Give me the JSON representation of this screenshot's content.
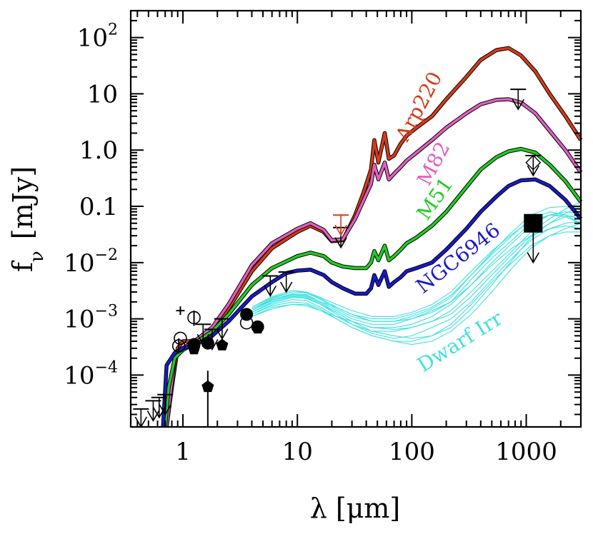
{
  "chart_data": {
    "type": "line",
    "xlabel": "λ [μm]",
    "ylabel": "f_ν [mJy]",
    "xscale": "log",
    "yscale": "log",
    "xlim": [
      0.35,
      3000
    ],
    "ylim": [
      1.2e-05,
      300
    ],
    "grid": false,
    "x_ticks": [
      {
        "value": 1,
        "label": "1"
      },
      {
        "value": 10,
        "label": "10"
      },
      {
        "value": 100,
        "label": "100"
      },
      {
        "value": 1000,
        "label": "1000"
      }
    ],
    "y_ticks": [
      {
        "value": 0.0001,
        "base": "10",
        "exp": "−4"
      },
      {
        "value": 0.001,
        "base": "10",
        "exp": "−3"
      },
      {
        "value": 0.01,
        "base": "10",
        "exp": "−2"
      },
      {
        "value": 0.1,
        "label": "0.1"
      },
      {
        "value": 1,
        "label": "1.0"
      },
      {
        "value": 10,
        "label": "10"
      },
      {
        "value": 100,
        "base": "10",
        "exp": "2"
      }
    ],
    "series": [
      {
        "name": "Arp220",
        "color": "#d63a1a",
        "points": [
          [
            0.72,
            1.2e-05
          ],
          [
            0.8,
            6e-05
          ],
          [
            0.9,
            0.0003
          ],
          [
            1.0,
            0.0004
          ],
          [
            1.3,
            0.0004
          ],
          [
            1.8,
            0.00065
          ],
          [
            2.5,
            0.0015
          ],
          [
            4,
            0.007
          ],
          [
            6,
            0.018
          ],
          [
            10,
            0.035
          ],
          [
            13,
            0.045
          ],
          [
            17,
            0.035
          ],
          [
            20,
            0.024
          ],
          [
            25,
            0.025
          ],
          [
            32,
            0.07
          ],
          [
            38,
            0.18
          ],
          [
            44,
            0.45
          ],
          [
            47,
            1.5
          ],
          [
            51,
            0.6
          ],
          [
            58,
            2
          ],
          [
            63,
            0.7
          ],
          [
            70,
            0.8
          ],
          [
            80,
            1.3
          ],
          [
            90,
            1.8
          ],
          [
            110,
            2.5
          ],
          [
            150,
            4
          ],
          [
            200,
            8
          ],
          [
            300,
            20
          ],
          [
            400,
            40
          ],
          [
            550,
            60
          ],
          [
            700,
            65
          ],
          [
            900,
            48
          ],
          [
            1200,
            25
          ],
          [
            1600,
            10
          ],
          [
            2200,
            4
          ],
          [
            3000,
            1.5
          ]
        ]
      },
      {
        "name": "M82",
        "color": "#e060c0",
        "points": [
          [
            0.72,
            1.2e-05
          ],
          [
            0.78,
            5e-05
          ],
          [
            0.85,
            0.0002
          ],
          [
            1.0,
            0.0003
          ],
          [
            1.3,
            0.00042
          ],
          [
            1.8,
            0.0007
          ],
          [
            2.5,
            0.0018
          ],
          [
            4,
            0.009
          ],
          [
            6,
            0.022
          ],
          [
            10,
            0.04
          ],
          [
            13,
            0.05
          ],
          [
            17,
            0.038
          ],
          [
            20,
            0.025
          ],
          [
            25,
            0.026
          ],
          [
            32,
            0.06
          ],
          [
            38,
            0.13
          ],
          [
            44,
            0.25
          ],
          [
            47,
            0.55
          ],
          [
            51,
            0.3
          ],
          [
            58,
            0.6
          ],
          [
            63,
            0.3
          ],
          [
            70,
            0.38
          ],
          [
            80,
            0.5
          ],
          [
            90,
            0.65
          ],
          [
            110,
            0.9
          ],
          [
            150,
            1.5
          ],
          [
            200,
            2.5
          ],
          [
            300,
            4.5
          ],
          [
            400,
            6.5
          ],
          [
            550,
            7.8
          ],
          [
            700,
            8
          ],
          [
            900,
            7
          ],
          [
            1200,
            4.5
          ],
          [
            1600,
            2.2
          ],
          [
            2200,
            1
          ],
          [
            3000,
            0.4
          ]
        ]
      },
      {
        "name": "M51",
        "color": "#22cc22",
        "points": [
          [
            0.7,
            1.2e-05
          ],
          [
            0.75,
            6e-05
          ],
          [
            0.85,
            0.0002
          ],
          [
            1.0,
            0.00028
          ],
          [
            1.3,
            0.00038
          ],
          [
            1.8,
            0.0006
          ],
          [
            2.5,
            0.0012
          ],
          [
            4,
            0.004
          ],
          [
            6,
            0.008
          ],
          [
            10,
            0.013
          ],
          [
            13,
            0.015
          ],
          [
            17,
            0.013
          ],
          [
            20,
            0.01
          ],
          [
            25,
            0.0085
          ],
          [
            32,
            0.008
          ],
          [
            40,
            0.008
          ],
          [
            44,
            0.01
          ],
          [
            47,
            0.016
          ],
          [
            51,
            0.011
          ],
          [
            58,
            0.02
          ],
          [
            63,
            0.011
          ],
          [
            70,
            0.013
          ],
          [
            80,
            0.017
          ],
          [
            90,
            0.022
          ],
          [
            110,
            0.028
          ],
          [
            150,
            0.045
          ],
          [
            200,
            0.08
          ],
          [
            300,
            0.22
          ],
          [
            400,
            0.45
          ],
          [
            550,
            0.75
          ],
          [
            700,
            0.95
          ],
          [
            900,
            1.05
          ],
          [
            1200,
            0.9
          ],
          [
            1600,
            0.55
          ],
          [
            2200,
            0.28
          ],
          [
            3000,
            0.12
          ]
        ]
      },
      {
        "name": "NGC6946",
        "color": "#1a1ac8",
        "points": [
          [
            0.67,
            1.2e-05
          ],
          [
            0.72,
            0.00015
          ],
          [
            0.85,
            0.00025
          ],
          [
            1.0,
            0.0003
          ],
          [
            1.3,
            0.00035
          ],
          [
            1.8,
            0.0005
          ],
          [
            2.5,
            0.0009
          ],
          [
            4,
            0.0025
          ],
          [
            6,
            0.0045
          ],
          [
            8,
            0.0065
          ],
          [
            10,
            0.0072
          ],
          [
            13,
            0.0075
          ],
          [
            17,
            0.006
          ],
          [
            20,
            0.0045
          ],
          [
            25,
            0.0035
          ],
          [
            32,
            0.0028
          ],
          [
            40,
            0.0028
          ],
          [
            44,
            0.0035
          ],
          [
            47,
            0.006
          ],
          [
            51,
            0.004
          ],
          [
            58,
            0.007
          ],
          [
            63,
            0.0037
          ],
          [
            70,
            0.0045
          ],
          [
            80,
            0.0055
          ],
          [
            90,
            0.007
          ],
          [
            110,
            0.008
          ],
          [
            150,
            0.01
          ],
          [
            200,
            0.017
          ],
          [
            300,
            0.04
          ],
          [
            400,
            0.08
          ],
          [
            550,
            0.15
          ],
          [
            700,
            0.23
          ],
          [
            900,
            0.29
          ],
          [
            1200,
            0.3
          ],
          [
            1600,
            0.23
          ],
          [
            2200,
            0.13
          ],
          [
            3000,
            0.06
          ]
        ]
      }
    ],
    "dwarf_irr": {
      "name": "Dwarf Irr",
      "color": "#40e0e0",
      "anchor_x": [
        4,
        6,
        9,
        12,
        16,
        22,
        30,
        45,
        70,
        100,
        150,
        220,
        330,
        500,
        750,
        1100,
        1600,
        2200,
        3000
      ],
      "curves": [
        [
          0.0012,
          0.0018,
          0.0022,
          0.0021,
          0.0016,
          0.0011,
          0.0008,
          0.0006,
          0.0006,
          0.0007,
          0.0009,
          0.0012,
          0.0025,
          0.006,
          0.014,
          0.03,
          0.05,
          0.065,
          0.07
        ],
        [
          0.0014,
          0.0022,
          0.0028,
          0.0027,
          0.002,
          0.0014,
          0.001,
          0.0008,
          0.0008,
          0.001,
          0.0014,
          0.002,
          0.004,
          0.01,
          0.022,
          0.045,
          0.07,
          0.08,
          0.075
        ],
        [
          0.0011,
          0.0016,
          0.0018,
          0.0017,
          0.0014,
          0.0011,
          0.0009,
          0.0007,
          0.0007,
          0.0008,
          0.0011,
          0.0018,
          0.004,
          0.009,
          0.018,
          0.03,
          0.04,
          0.045,
          0.04
        ],
        [
          0.0016,
          0.0025,
          0.0032,
          0.003,
          0.0024,
          0.0018,
          0.0014,
          0.0011,
          0.0011,
          0.0013,
          0.0018,
          0.003,
          0.007,
          0.016,
          0.032,
          0.055,
          0.07,
          0.065,
          0.05
        ],
        [
          0.0013,
          0.0019,
          0.0024,
          0.0023,
          0.0018,
          0.0012,
          0.0008,
          0.00055,
          0.00045,
          0.0005,
          0.0007,
          0.001,
          0.002,
          0.005,
          0.012,
          0.025,
          0.04,
          0.05,
          0.055
        ],
        [
          0.0015,
          0.0023,
          0.003,
          0.0029,
          0.0022,
          0.0015,
          0.0011,
          0.0009,
          0.0009,
          0.0011,
          0.0015,
          0.0024,
          0.006,
          0.014,
          0.03,
          0.06,
          0.08,
          0.07,
          0.05
        ],
        [
          0.0012,
          0.0017,
          0.002,
          0.0019,
          0.0015,
          0.001,
          0.0007,
          0.0005,
          0.0004,
          0.00035,
          0.0004,
          0.0006,
          0.0012,
          0.003,
          0.008,
          0.018,
          0.03,
          0.04,
          0.05
        ],
        [
          0.0014,
          0.0021,
          0.0026,
          0.0025,
          0.0019,
          0.0013,
          0.0009,
          0.0007,
          0.00065,
          0.0007,
          0.0009,
          0.0014,
          0.003,
          0.007,
          0.016,
          0.035,
          0.06,
          0.09,
          0.12
        ],
        [
          0.0013,
          0.002,
          0.0025,
          0.0024,
          0.0018,
          0.0013,
          0.0009,
          0.0006,
          0.0005,
          0.00045,
          0.0005,
          0.0007,
          0.0015,
          0.004,
          0.011,
          0.028,
          0.05,
          0.075,
          0.1
        ],
        [
          0.0015,
          0.0022,
          0.0027,
          0.0026,
          0.002,
          0.0016,
          0.0012,
          0.0009,
          0.0009,
          0.001,
          0.0013,
          0.002,
          0.005,
          0.012,
          0.025,
          0.05,
          0.07,
          0.07,
          0.06
        ],
        [
          0.0011,
          0.0015,
          0.0018,
          0.0018,
          0.0014,
          0.001,
          0.0007,
          0.0005,
          0.0004,
          0.0004,
          0.0005,
          0.0008,
          0.0018,
          0.0045,
          0.01,
          0.02,
          0.03,
          0.035,
          0.035
        ],
        [
          0.0016,
          0.0024,
          0.003,
          0.003,
          0.0023,
          0.0016,
          0.0012,
          0.001,
          0.001,
          0.0012,
          0.0016,
          0.0026,
          0.006,
          0.015,
          0.035,
          0.07,
          0.095,
          0.1,
          0.09
        ]
      ]
    },
    "annotations": [
      {
        "text": "Arp220",
        "color": "#d63a1a"
      },
      {
        "text": "M82",
        "color": "#e060c0"
      },
      {
        "text": "M51",
        "color": "#22cc22"
      },
      {
        "text": "NGC6946",
        "color": "#1a1ac8"
      },
      {
        "text": "Dwarf Irr",
        "color": "#40e0e0"
      }
    ],
    "detections": [
      {
        "x": 1.25,
        "y": 0.00035,
        "marker": "circle-filled"
      },
      {
        "x": 1.65,
        "y": 0.00037,
        "marker": "circle-filled"
      },
      {
        "x": 3.6,
        "y": 0.0012,
        "marker": "circle-filled"
      },
      {
        "x": 4.5,
        "y": 0.00072,
        "marker": "circle-filled"
      },
      {
        "x": 1.25,
        "y": 0.00029,
        "marker": "pentagon-filled"
      },
      {
        "x": 1.65,
        "y": 6.2e-05,
        "marker": "pentagon-filled",
        "y_err_lo": 1.2e-05,
        "y_err_hi": 0.00012
      },
      {
        "x": 2.2,
        "y": 0.00034,
        "marker": "pentagon-filled"
      },
      {
        "x": 4.5,
        "y": 0.00068,
        "marker": "pentagon-filled"
      },
      {
        "x": 0.92,
        "y": 0.00033,
        "marker": "circle-open",
        "y_err_lo": 0.00024,
        "y_err_hi": 0.00045
      },
      {
        "x": 0.95,
        "y": 0.00045,
        "marker": "circle-open"
      },
      {
        "x": 1.25,
        "y": 0.00105,
        "marker": "circle-open",
        "y_err_lo": 0.00075,
        "y_err_hi": 0.0014
      },
      {
        "x": 3.6,
        "y": 0.00085,
        "marker": "circle-open"
      },
      {
        "x": 0.95,
        "y": 0.0014,
        "marker": "cross-small"
      },
      {
        "x": 1150,
        "y": 0.05,
        "marker": "square-filled"
      },
      {
        "x": 1150,
        "y": 0.6,
        "marker": "diamond-open"
      }
    ],
    "upper_limits": [
      {
        "x": 0.43,
        "y": 2.5e-05
      },
      {
        "x": 0.55,
        "y": 3.5e-05
      },
      {
        "x": 0.62,
        "y": 4e-05
      },
      {
        "x": 0.7,
        "y": 4.5e-05
      },
      {
        "x": 1.5,
        "y": 0.0008
      },
      {
        "x": 1.8,
        "y": 0.00065
      },
      {
        "x": 2.2,
        "y": 0.001
      },
      {
        "x": 5.8,
        "y": 0.0058
      },
      {
        "x": 8.0,
        "y": 0.0068
      },
      {
        "x": 24,
        "y": 0.042
      },
      {
        "x": 24,
        "y": 0.07,
        "color": "#d63a1a"
      },
      {
        "x": 850,
        "y": 12
      },
      {
        "x": 1150,
        "y": 0.8
      },
      {
        "x": 1150,
        "y": 0.05,
        "arrow_to": 0.01
      }
    ]
  }
}
